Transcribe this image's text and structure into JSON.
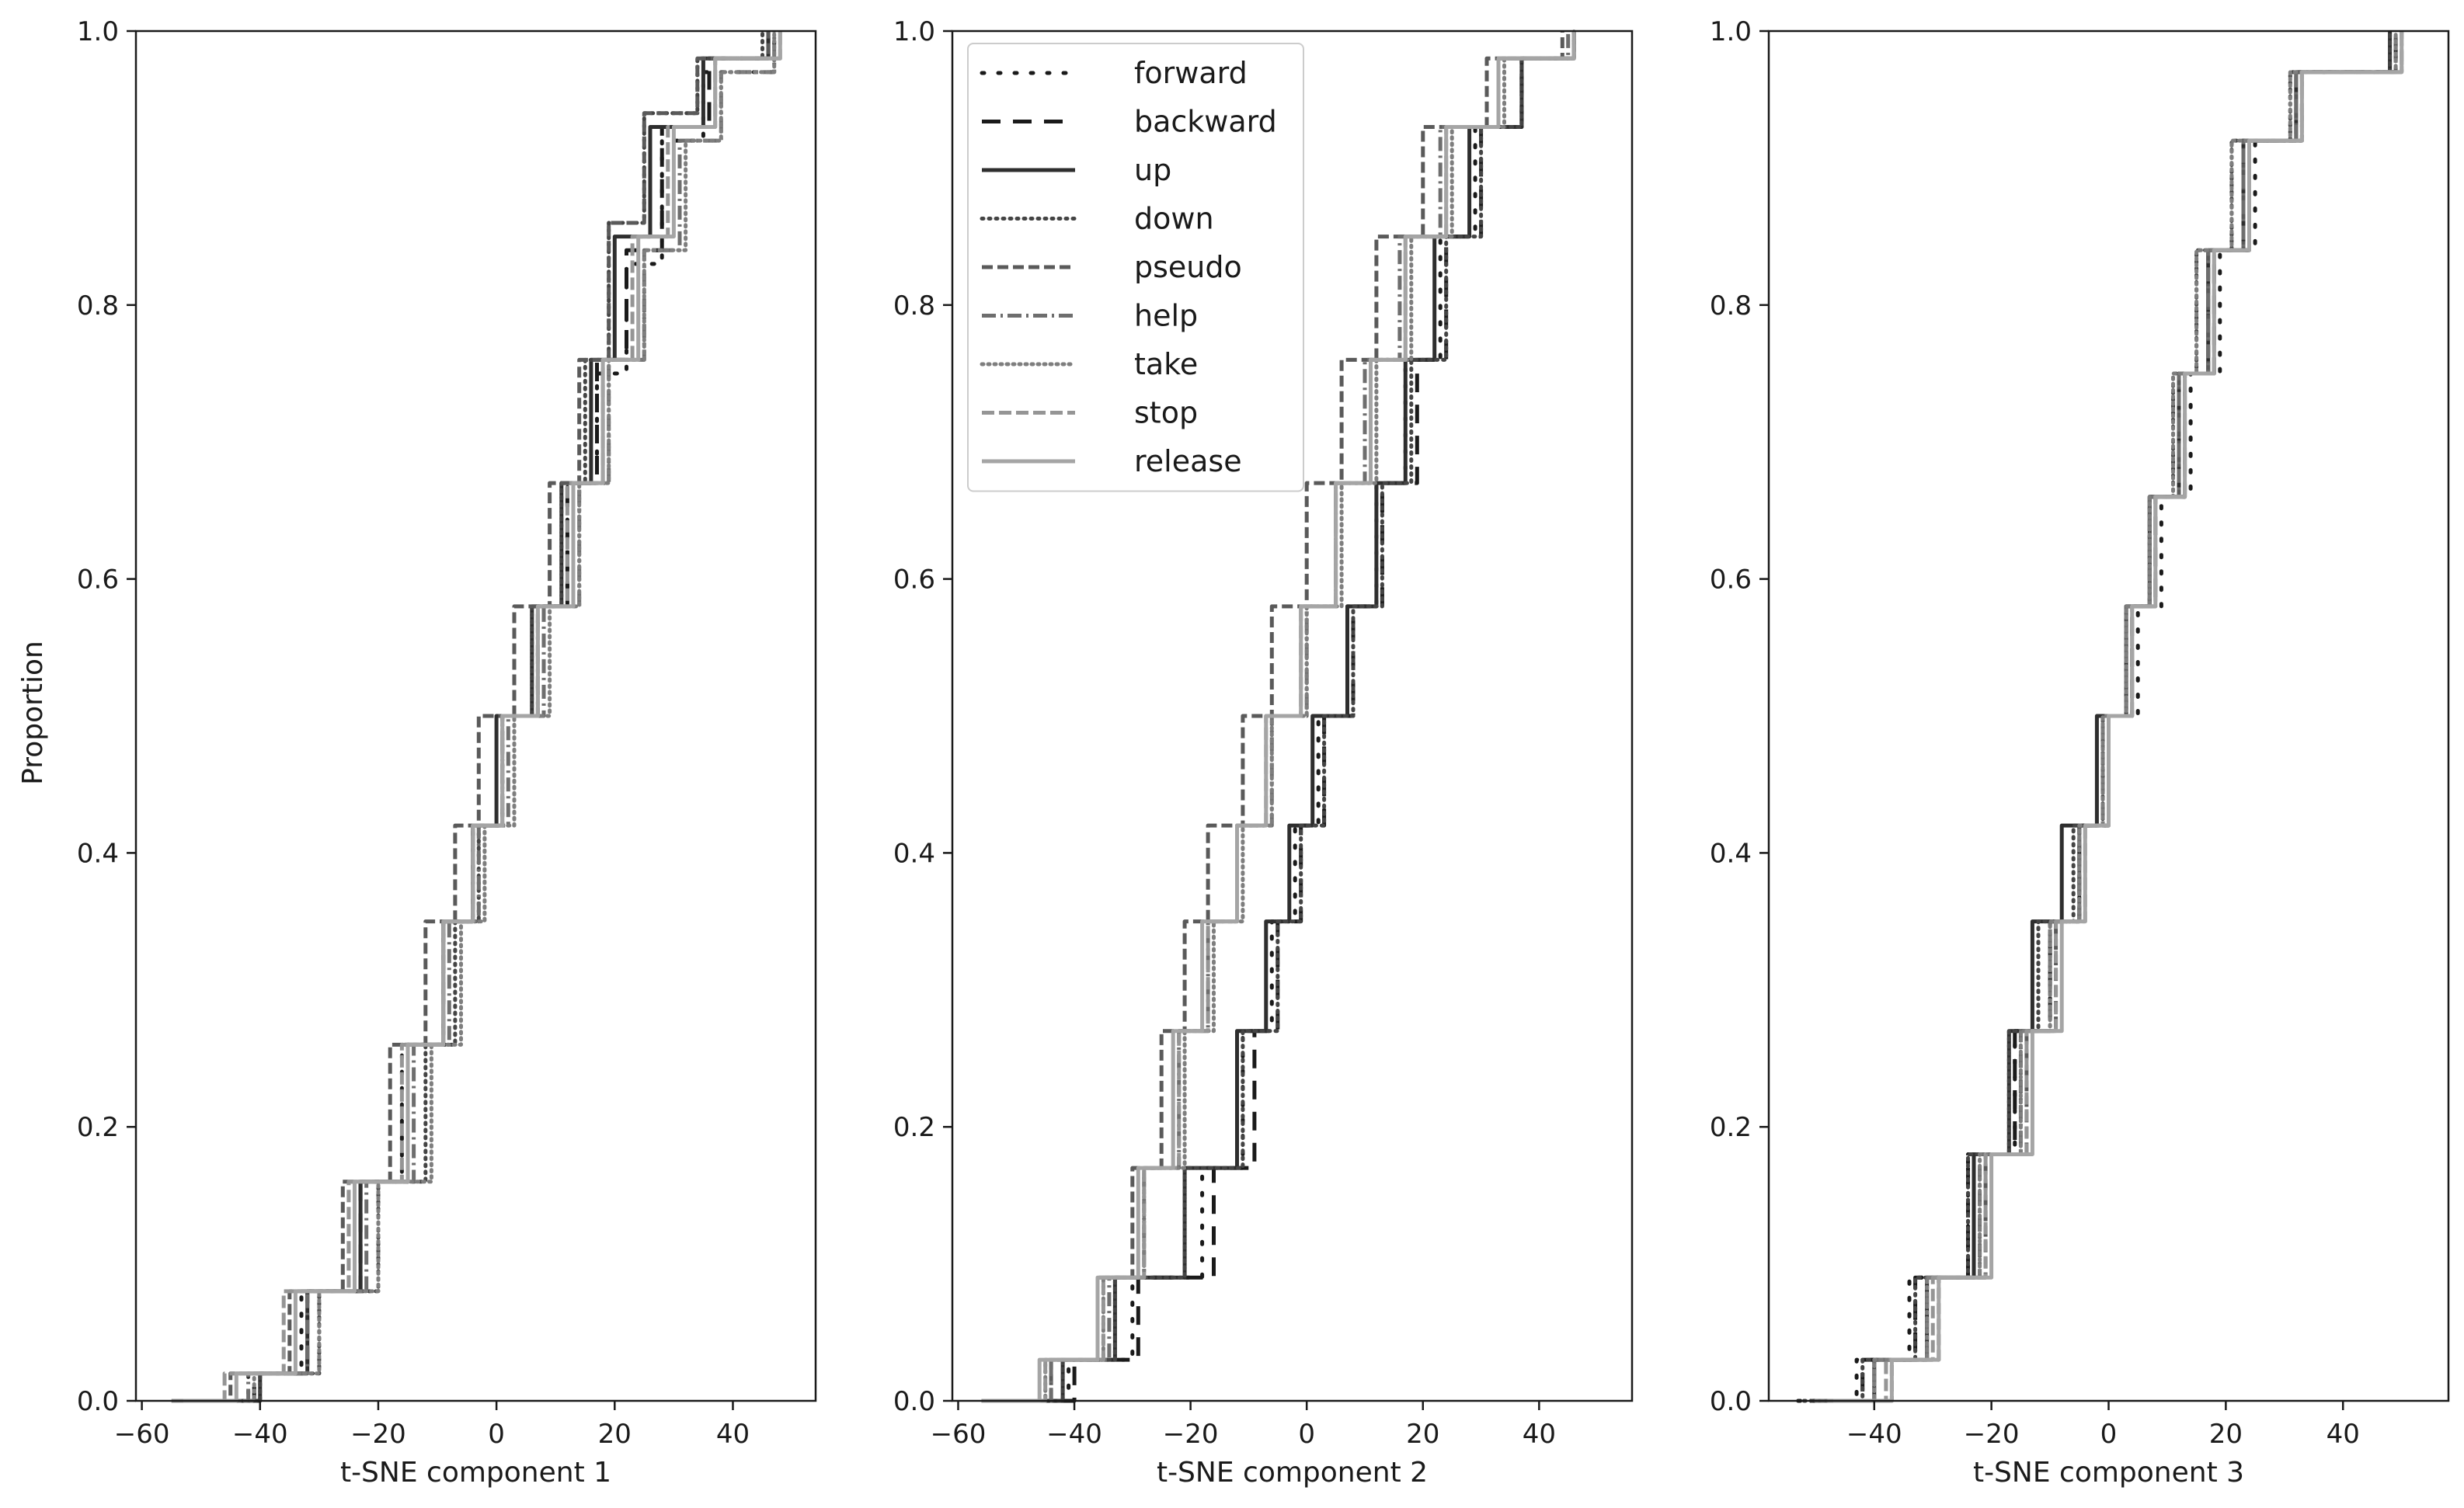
{
  "figure": {
    "ylabel": "Proportion"
  },
  "chart_data": [
    {
      "type": "line",
      "chart_kind": "ecdf",
      "xlabel": "t-SNE component 1",
      "ylabel": "Proportion",
      "xlim": [
        -61,
        54
      ],
      "ylim": [
        0,
        1
      ],
      "x_ticks": [
        -60,
        -40,
        -20,
        0,
        20,
        40
      ],
      "x_tick_labels": [
        "−60",
        "−40",
        "−20",
        "0",
        "20",
        "40"
      ],
      "y_ticks": [
        0,
        0.2,
        0.4,
        0.6,
        0.8,
        1.0
      ],
      "y_tick_labels": [
        "0.0",
        "0.2",
        "0.4",
        "0.6",
        "0.8",
        "1.0"
      ],
      "series": [
        {
          "name": "forward",
          "x": [
            -49,
            -42,
            -33,
            -24,
            -16,
            -9,
            -4,
            1,
            7,
            12,
            17,
            22,
            28,
            35,
            47
          ],
          "y": [
            0,
            0.02,
            0.08,
            0.16,
            0.26,
            0.35,
            0.42,
            0.5,
            0.58,
            0.67,
            0.75,
            0.83,
            0.92,
            0.97,
            1
          ]
        },
        {
          "name": "backward",
          "x": [
            -47,
            -41,
            -32,
            -23,
            -15,
            -9,
            -4,
            1,
            7,
            12,
            17,
            22,
            28,
            36,
            46
          ],
          "y": [
            0,
            0.02,
            0.08,
            0.16,
            0.26,
            0.35,
            0.42,
            0.5,
            0.58,
            0.67,
            0.76,
            0.84,
            0.93,
            0.98,
            1
          ]
        },
        {
          "name": "up",
          "x": [
            -45,
            -40,
            -32,
            -23,
            -15,
            -9,
            -4,
            0,
            6,
            11,
            16,
            20,
            26,
            35,
            46
          ],
          "y": [
            0,
            0.02,
            0.08,
            0.16,
            0.26,
            0.35,
            0.42,
            0.5,
            0.58,
            0.67,
            0.76,
            0.85,
            0.93,
            0.98,
            1
          ]
        },
        {
          "name": "down",
          "x": [
            -48,
            -40,
            -30,
            -20,
            -12,
            -7,
            -3,
            1,
            6,
            11,
            15,
            19,
            25,
            34,
            45
          ],
          "y": [
            0,
            0.02,
            0.08,
            0.16,
            0.26,
            0.35,
            0.42,
            0.5,
            0.58,
            0.67,
            0.76,
            0.86,
            0.94,
            0.98,
            1
          ]
        },
        {
          "name": "pseudo",
          "x": [
            -52,
            -45,
            -35,
            -26,
            -18,
            -12,
            -7,
            -3,
            3,
            9,
            14,
            19,
            25,
            34,
            46
          ],
          "y": [
            0,
            0.02,
            0.08,
            0.16,
            0.26,
            0.35,
            0.42,
            0.5,
            0.58,
            0.67,
            0.76,
            0.86,
            0.94,
            0.98,
            1
          ]
        },
        {
          "name": "help",
          "x": [
            -51,
            -42,
            -32,
            -22,
            -14,
            -8,
            -3,
            2,
            8,
            14,
            19,
            25,
            31,
            38,
            47
          ],
          "y": [
            0,
            0.02,
            0.08,
            0.16,
            0.26,
            0.35,
            0.42,
            0.5,
            0.58,
            0.67,
            0.76,
            0.84,
            0.92,
            0.97,
            1
          ]
        },
        {
          "name": "take",
          "x": [
            -50,
            -41,
            -30,
            -20,
            -11,
            -6,
            -2,
            3,
            9,
            14,
            19,
            25,
            32,
            38,
            47
          ],
          "y": [
            0,
            0.02,
            0.08,
            0.16,
            0.26,
            0.35,
            0.42,
            0.5,
            0.58,
            0.67,
            0.76,
            0.84,
            0.92,
            0.97,
            1
          ]
        },
        {
          "name": "stop",
          "x": [
            -55,
            -46,
            -36,
            -25,
            -16,
            -9,
            -4,
            1,
            7,
            12,
            18,
            23,
            29,
            37,
            48
          ],
          "y": [
            0,
            0.02,
            0.08,
            0.16,
            0.26,
            0.35,
            0.42,
            0.5,
            0.58,
            0.67,
            0.76,
            0.85,
            0.93,
            0.98,
            1
          ]
        },
        {
          "name": "release",
          "x": [
            -53,
            -44,
            -34,
            -24,
            -15,
            -9,
            -4,
            1,
            7,
            13,
            18,
            24,
            30,
            37,
            48
          ],
          "y": [
            0,
            0.02,
            0.08,
            0.16,
            0.26,
            0.35,
            0.42,
            0.5,
            0.58,
            0.67,
            0.76,
            0.85,
            0.93,
            0.98,
            1
          ]
        }
      ]
    },
    {
      "type": "line",
      "chart_kind": "ecdf",
      "xlabel": "t-SNE component 2",
      "ylabel": "",
      "xlim": [
        -61,
        56
      ],
      "ylim": [
        0,
        1
      ],
      "x_ticks": [
        -60,
        -40,
        -20,
        0,
        20,
        40
      ],
      "x_tick_labels": [
        "−60",
        "−40",
        "−20",
        "0",
        "20",
        "40"
      ],
      "y_ticks": [
        0,
        0.2,
        0.4,
        0.6,
        0.8,
        1.0
      ],
      "y_tick_labels": [
        "0.0",
        "0.2",
        "0.4",
        "0.6",
        "0.8",
        "1.0"
      ],
      "legend": {
        "location": "top-left",
        "entries": [
          "forward",
          "backward",
          "up",
          "down",
          "pseudo",
          "help",
          "take",
          "stop",
          "release"
        ]
      },
      "series": [
        {
          "name": "forward",
          "x": [
            -50,
            -41,
            -30,
            -18,
            -11,
            -6,
            -2,
            2,
            7,
            12,
            17,
            23,
            29,
            37,
            46
          ],
          "y": [
            0,
            0.03,
            0.09,
            0.17,
            0.27,
            0.35,
            0.42,
            0.5,
            0.58,
            0.67,
            0.76,
            0.85,
            0.93,
            0.98,
            1
          ]
        },
        {
          "name": "backward",
          "x": [
            -48,
            -40,
            -29,
            -16,
            -9,
            -5,
            -1,
            3,
            8,
            13,
            19,
            24,
            30,
            37,
            46
          ],
          "y": [
            0,
            0.03,
            0.09,
            0.17,
            0.27,
            0.35,
            0.42,
            0.5,
            0.58,
            0.67,
            0.76,
            0.85,
            0.93,
            0.98,
            1
          ]
        },
        {
          "name": "up",
          "x": [
            -50,
            -42,
            -33,
            -21,
            -12,
            -7,
            -3,
            1,
            7,
            12,
            17,
            22,
            28,
            37,
            46
          ],
          "y": [
            0,
            0.03,
            0.09,
            0.17,
            0.27,
            0.35,
            0.42,
            0.5,
            0.58,
            0.67,
            0.76,
            0.85,
            0.93,
            0.98,
            1
          ]
        },
        {
          "name": "down",
          "x": [
            -50,
            -42,
            -33,
            -21,
            -11,
            -5,
            -1,
            3,
            8,
            13,
            18,
            24,
            30,
            37,
            46
          ],
          "y": [
            0,
            0.03,
            0.09,
            0.17,
            0.27,
            0.35,
            0.42,
            0.5,
            0.58,
            0.67,
            0.76,
            0.85,
            0.93,
            0.98,
            1
          ]
        },
        {
          "name": "pseudo",
          "x": [
            -52,
            -44,
            -36,
            -30,
            -25,
            -21,
            -17,
            -11,
            -6,
            0,
            6,
            12,
            20,
            31,
            44
          ],
          "y": [
            0,
            0.03,
            0.09,
            0.17,
            0.27,
            0.35,
            0.42,
            0.5,
            0.58,
            0.67,
            0.76,
            0.85,
            0.93,
            0.98,
            1
          ]
        },
        {
          "name": "help",
          "x": [
            -53,
            -44,
            -34,
            -28,
            -22,
            -17,
            -12,
            -6,
            0,
            5,
            10,
            16,
            23,
            33,
            45
          ],
          "y": [
            0,
            0.03,
            0.09,
            0.17,
            0.27,
            0.35,
            0.42,
            0.5,
            0.58,
            0.67,
            0.76,
            0.85,
            0.93,
            0.98,
            1
          ]
        },
        {
          "name": "take",
          "x": [
            -54,
            -45,
            -35,
            -28,
            -21,
            -16,
            -11,
            -6,
            0,
            6,
            12,
            18,
            25,
            34,
            46
          ],
          "y": [
            0,
            0.03,
            0.09,
            0.17,
            0.27,
            0.35,
            0.42,
            0.5,
            0.58,
            0.67,
            0.76,
            0.85,
            0.93,
            0.98,
            1
          ]
        },
        {
          "name": "stop",
          "x": [
            -55,
            -45,
            -35,
            -28,
            -22,
            -17,
            -12,
            -7,
            -1,
            5,
            11,
            17,
            24,
            33,
            46
          ],
          "y": [
            0,
            0.03,
            0.09,
            0.17,
            0.27,
            0.35,
            0.42,
            0.5,
            0.58,
            0.67,
            0.76,
            0.85,
            0.93,
            0.98,
            1
          ]
        },
        {
          "name": "release",
          "x": [
            -56,
            -46,
            -36,
            -29,
            -23,
            -18,
            -12,
            -7,
            -1,
            5,
            11,
            17,
            24,
            33,
            46
          ],
          "y": [
            0,
            0.03,
            0.09,
            0.17,
            0.27,
            0.35,
            0.42,
            0.5,
            0.58,
            0.67,
            0.76,
            0.85,
            0.93,
            0.98,
            1
          ]
        }
      ]
    },
    {
      "type": "line",
      "chart_kind": "ecdf",
      "xlabel": "t-SNE component 3",
      "ylabel": "",
      "xlim": [
        -58,
        58
      ],
      "ylim": [
        0,
        1
      ],
      "x_ticks": [
        -40,
        -20,
        0,
        20,
        40
      ],
      "x_tick_labels": [
        "−40",
        "−20",
        "0",
        "20",
        "40"
      ],
      "y_ticks": [
        0,
        0.2,
        0.4,
        0.6,
        0.8,
        1.0
      ],
      "y_tick_labels": [
        "0.0",
        "0.2",
        "0.4",
        "0.6",
        "0.8",
        "1.0"
      ],
      "series": [
        {
          "name": "forward",
          "x": [
            -53,
            -43,
            -34,
            -24,
            -16,
            -10,
            -5,
            0,
            5,
            9,
            14,
            19,
            25,
            33,
            49
          ],
          "y": [
            0,
            0.03,
            0.09,
            0.18,
            0.27,
            0.35,
            0.42,
            0.5,
            0.58,
            0.66,
            0.75,
            0.84,
            0.92,
            0.97,
            1
          ]
        },
        {
          "name": "backward",
          "x": [
            -51,
            -42,
            -33,
            -24,
            -16,
            -10,
            -5,
            0,
            4,
            8,
            13,
            18,
            24,
            33,
            49
          ],
          "y": [
            0,
            0.03,
            0.09,
            0.18,
            0.27,
            0.35,
            0.42,
            0.5,
            0.58,
            0.66,
            0.75,
            0.84,
            0.92,
            0.97,
            1
          ]
        },
        {
          "name": "up",
          "x": [
            -50,
            -40,
            -31,
            -23,
            -17,
            -13,
            -8,
            -2,
            3,
            7,
            12,
            17,
            23,
            32,
            48
          ],
          "y": [
            0,
            0.03,
            0.09,
            0.18,
            0.27,
            0.35,
            0.42,
            0.5,
            0.58,
            0.66,
            0.75,
            0.84,
            0.92,
            0.97,
            1
          ]
        },
        {
          "name": "down",
          "x": [
            -52,
            -42,
            -33,
            -24,
            -17,
            -12,
            -6,
            -1,
            3,
            7,
            11,
            15,
            21,
            31,
            48
          ],
          "y": [
            0,
            0.03,
            0.09,
            0.18,
            0.27,
            0.35,
            0.42,
            0.5,
            0.58,
            0.66,
            0.75,
            0.84,
            0.92,
            0.97,
            1
          ]
        },
        {
          "name": "pseudo",
          "x": [
            -46,
            -37,
            -29,
            -21,
            -14,
            -9,
            -5,
            0,
            3,
            7,
            12,
            17,
            23,
            32,
            49
          ],
          "y": [
            0,
            0.03,
            0.09,
            0.18,
            0.27,
            0.35,
            0.42,
            0.5,
            0.58,
            0.66,
            0.75,
            0.84,
            0.92,
            0.97,
            1
          ]
        },
        {
          "name": "help",
          "x": [
            -50,
            -40,
            -31,
            -22,
            -15,
            -10,
            -5,
            -1,
            3,
            7,
            12,
            17,
            23,
            32,
            50
          ],
          "y": [
            0,
            0.03,
            0.09,
            0.18,
            0.27,
            0.35,
            0.42,
            0.5,
            0.58,
            0.66,
            0.75,
            0.84,
            0.92,
            0.97,
            1
          ]
        },
        {
          "name": "take",
          "x": [
            -50,
            -40,
            -31,
            -22,
            -15,
            -10,
            -5,
            -1,
            3,
            7,
            11,
            15,
            21,
            31,
            49
          ],
          "y": [
            0,
            0.03,
            0.09,
            0.18,
            0.27,
            0.35,
            0.42,
            0.5,
            0.58,
            0.66,
            0.75,
            0.84,
            0.92,
            0.97,
            1
          ]
        },
        {
          "name": "stop",
          "x": [
            -48,
            -38,
            -30,
            -21,
            -14,
            -9,
            -4,
            0,
            4,
            8,
            13,
            18,
            24,
            33,
            50
          ],
          "y": [
            0,
            0.03,
            0.09,
            0.18,
            0.27,
            0.35,
            0.42,
            0.5,
            0.58,
            0.66,
            0.75,
            0.84,
            0.92,
            0.97,
            1
          ]
        },
        {
          "name": "release",
          "x": [
            -47,
            -37,
            -29,
            -20,
            -13,
            -8,
            -4,
            0,
            4,
            8,
            13,
            18,
            24,
            33,
            50
          ],
          "y": [
            0,
            0.03,
            0.09,
            0.18,
            0.27,
            0.35,
            0.42,
            0.5,
            0.58,
            0.66,
            0.75,
            0.84,
            0.92,
            0.97,
            1
          ]
        }
      ]
    }
  ],
  "series_styles": {
    "forward": {
      "color": "#1a1a1a",
      "dash": "3,18",
      "cap": "round"
    },
    "backward": {
      "color": "#1a1a1a",
      "dash": "24,16",
      "cap": "butt"
    },
    "up": {
      "color": "#2e2e2e",
      "dash": "",
      "cap": "butt"
    },
    "down": {
      "color": "#444444",
      "dash": "2,7",
      "cap": "round"
    },
    "pseudo": {
      "color": "#5a5a5a",
      "dash": "14,6",
      "cap": "butt"
    },
    "help": {
      "color": "#6e6e6e",
      "dash": "18,6,3,6",
      "cap": "butt"
    },
    "take": {
      "color": "#7e7e7e",
      "dash": "2,6",
      "cap": "round"
    },
    "stop": {
      "color": "#959595",
      "dash": "16,6",
      "cap": "butt"
    },
    "release": {
      "color": "#a5a5a5",
      "dash": "",
      "cap": "butt"
    }
  }
}
